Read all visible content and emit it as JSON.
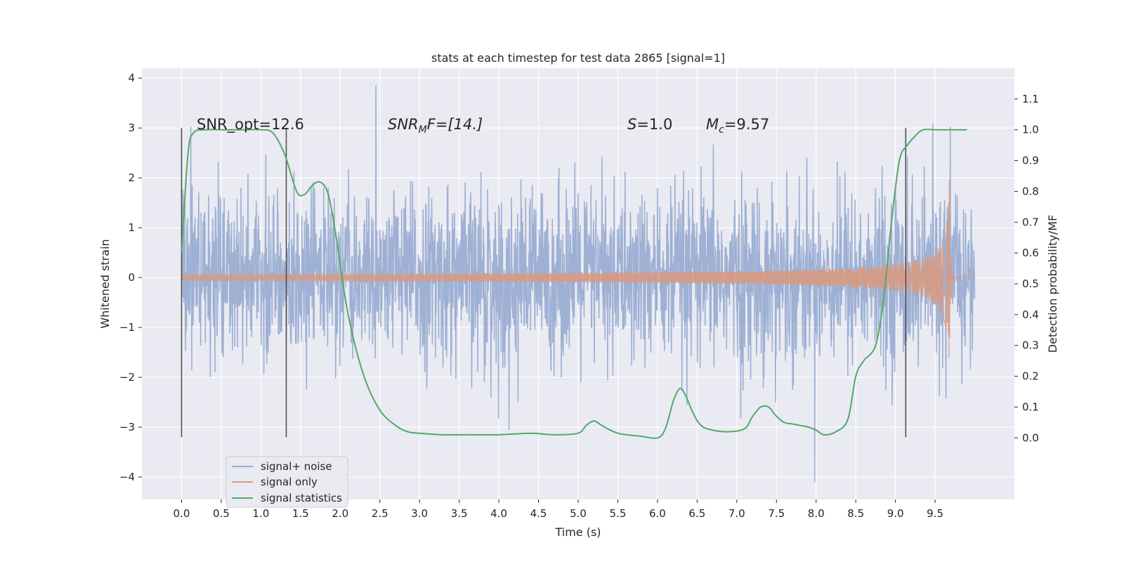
{
  "chart_data": {
    "type": "line",
    "title": "stats at each timestep for test data 2865 [signal=1]",
    "xlabel": "Time (s)",
    "ylabel": "Whitened strain",
    "y2label": "Detection probability/MF",
    "xlim": [
      -0.5,
      10.5
    ],
    "ylim": [
      -4.45,
      4.2
    ],
    "y2lim": [
      -0.2,
      1.2
    ],
    "xticks": [
      0.0,
      0.5,
      1.0,
      1.5,
      2.0,
      2.5,
      3.0,
      3.5,
      4.0,
      4.5,
      5.0,
      5.5,
      6.0,
      6.5,
      7.0,
      7.5,
      8.0,
      8.5,
      9.0,
      9.5
    ],
    "xtick_labels": [
      "0.0",
      "0.5",
      "1.0",
      "1.5",
      "2.0",
      "2.5",
      "3.0",
      "3.5",
      "4.0",
      "4.5",
      "5.0",
      "5.5",
      "6.0",
      "6.5",
      "7.0",
      "7.5",
      "8.0",
      "8.5",
      "9.0",
      "9.5"
    ],
    "yticks": [
      -4,
      -3,
      -2,
      -1,
      0,
      1,
      2,
      3,
      4
    ],
    "ytick_labels": [
      "−4",
      "−3",
      "−2",
      "−1",
      "0",
      "1",
      "2",
      "3",
      "4"
    ],
    "y2ticks": [
      0.0,
      0.1,
      0.2,
      0.3,
      0.4,
      0.5,
      0.6,
      0.7,
      0.8,
      0.9,
      1.0,
      1.1
    ],
    "y2tick_labels": [
      "0.0",
      "0.1",
      "0.2",
      "0.3",
      "0.4",
      "0.5",
      "0.6",
      "0.7",
      "0.8",
      "0.9",
      "1.0",
      "1.1"
    ],
    "grid": true,
    "legend_position": "lower-left",
    "annotations": {
      "snr_opt": "SNR_opt=12.6",
      "snr_mf_main": "SNR",
      "snr_mf_sub": "M",
      "snr_mf_rest": "F=[14.]",
      "s_main": "S",
      "s_rest": "=1.0",
      "mc_main": "M",
      "mc_sub": "c",
      "mc_rest": "=9.57"
    },
    "vlines_x": [
      0.0,
      1.32,
      9.13
    ],
    "vline_ylim": [
      -3.2,
      3.0
    ],
    "series": [
      {
        "name": "signal+ noise",
        "color": "#9aaed2",
        "description_kind": "noise",
        "sigma": 0.85,
        "x_range": [
          0.0,
          10.0
        ]
      },
      {
        "name": "signal only",
        "color": "#d79a82",
        "description_kind": "chirp",
        "x_range": [
          0.0,
          10.0
        ],
        "merger_x": 9.68,
        "peak_amplitude": 1.95
      },
      {
        "name": "signal statistics",
        "color": "#55a868",
        "axis": "right",
        "x": [
          0.0,
          0.08,
          0.15,
          0.3,
          0.5,
          0.8,
          1.0,
          1.15,
          1.3,
          1.45,
          1.55,
          1.65,
          1.75,
          1.85,
          1.95,
          2.1,
          2.3,
          2.5,
          2.7,
          2.85,
          3.0,
          3.3,
          3.6,
          4.0,
          4.4,
          4.7,
          5.0,
          5.1,
          5.2,
          5.3,
          5.5,
          5.8,
          6.0,
          6.1,
          6.2,
          6.28,
          6.35,
          6.45,
          6.55,
          6.7,
          6.9,
          7.1,
          7.2,
          7.3,
          7.4,
          7.5,
          7.6,
          7.7,
          7.9,
          8.0,
          8.1,
          8.25,
          8.4,
          8.5,
          8.6,
          8.75,
          8.85,
          8.95,
          9.05,
          9.15,
          9.25,
          9.35,
          9.5,
          9.65,
          9.9
        ],
        "values": [
          0.6,
          0.92,
          0.99,
          1.0,
          1.0,
          1.0,
          1.0,
          0.99,
          0.92,
          0.8,
          0.79,
          0.82,
          0.83,
          0.79,
          0.65,
          0.4,
          0.2,
          0.09,
          0.04,
          0.02,
          0.015,
          0.01,
          0.01,
          0.01,
          0.015,
          0.01,
          0.015,
          0.04,
          0.055,
          0.04,
          0.015,
          0.005,
          0.0,
          0.03,
          0.12,
          0.16,
          0.14,
          0.08,
          0.04,
          0.025,
          0.02,
          0.03,
          0.07,
          0.1,
          0.1,
          0.07,
          0.05,
          0.045,
          0.035,
          0.025,
          0.01,
          0.02,
          0.06,
          0.2,
          0.25,
          0.3,
          0.45,
          0.7,
          0.9,
          0.95,
          0.98,
          1.0,
          1.0,
          1.0,
          1.0
        ]
      }
    ]
  }
}
